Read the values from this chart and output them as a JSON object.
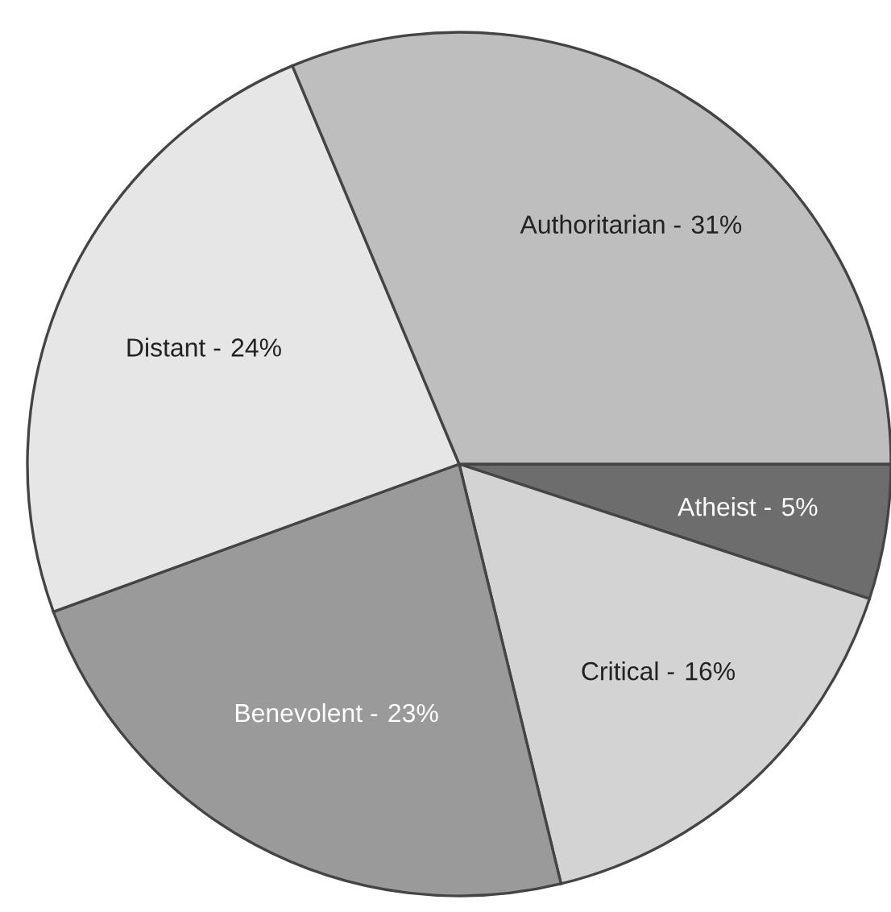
{
  "chart_data": {
    "type": "pie",
    "categories": [
      "Atheist -",
      "Critical -",
      "Benevolent -",
      "Distant -",
      "Authoritarian -"
    ],
    "values": [
      5,
      16,
      23,
      24,
      31
    ],
    "colors": [
      "#6d6d6d",
      "#d3d3d3",
      "#9a9a9a",
      "#e6e6e6",
      "#bebebe"
    ],
    "value_labels": [
      "5%",
      "16%",
      "23%",
      "24%",
      "31%"
    ]
  }
}
